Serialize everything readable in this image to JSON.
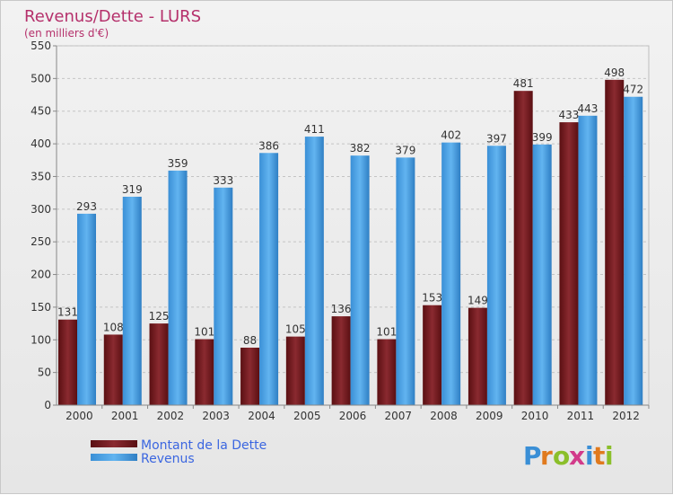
{
  "chart_data": {
    "type": "bar",
    "title": "Revenus/Dette - LURS",
    "subtitle": "(en milliers d'€)",
    "categories": [
      "2000",
      "2001",
      "2002",
      "2003",
      "2004",
      "2005",
      "2006",
      "2007",
      "2008",
      "2009",
      "2010",
      "2011",
      "2012"
    ],
    "series": [
      {
        "name": "Montant de la Dette",
        "color": "#7a1a1f",
        "values": [
          131,
          108,
          125,
          101,
          88,
          105,
          136,
          101,
          153,
          149,
          481,
          433,
          498
        ]
      },
      {
        "name": "Revenus",
        "color": "#4da6e8",
        "values": [
          293,
          319,
          359,
          333,
          386,
          411,
          382,
          379,
          402,
          397,
          399,
          443,
          472
        ]
      }
    ],
    "ylim": [
      0,
      550
    ],
    "yticks": [
      0,
      50,
      100,
      150,
      200,
      250,
      300,
      350,
      400,
      450,
      500,
      550
    ],
    "grid": true,
    "legend": "bottom-left"
  },
  "logo": {
    "text": "Proxiti"
  }
}
